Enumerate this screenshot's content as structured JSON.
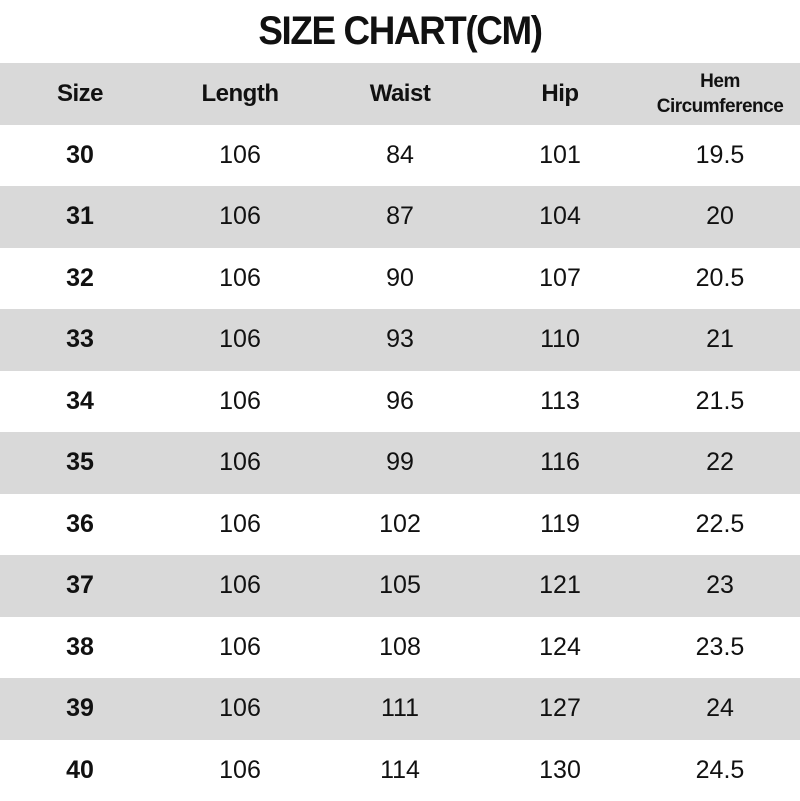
{
  "title": "SIZE CHART(CM)",
  "colors": {
    "stripe": "#d9d9d9",
    "background": "#ffffff",
    "text": "#111111"
  },
  "columns": [
    "Size",
    "Length",
    "Waist",
    "Hip",
    "Hem Circumference"
  ],
  "hem_lines": [
    "Hem",
    "Circumference"
  ],
  "rows": [
    [
      "30",
      "106",
      "84",
      "101",
      "19.5"
    ],
    [
      "31",
      "106",
      "87",
      "104",
      "20"
    ],
    [
      "32",
      "106",
      "90",
      "107",
      "20.5"
    ],
    [
      "33",
      "106",
      "93",
      "110",
      "21"
    ],
    [
      "34",
      "106",
      "96",
      "113",
      "21.5"
    ],
    [
      "35",
      "106",
      "99",
      "116",
      "22"
    ],
    [
      "36",
      "106",
      "102",
      "119",
      "22.5"
    ],
    [
      "37",
      "106",
      "105",
      "121",
      "23"
    ],
    [
      "38",
      "106",
      "108",
      "124",
      "23.5"
    ],
    [
      "39",
      "106",
      "111",
      "127",
      "24"
    ],
    [
      "40",
      "106",
      "114",
      "130",
      "24.5"
    ]
  ]
}
